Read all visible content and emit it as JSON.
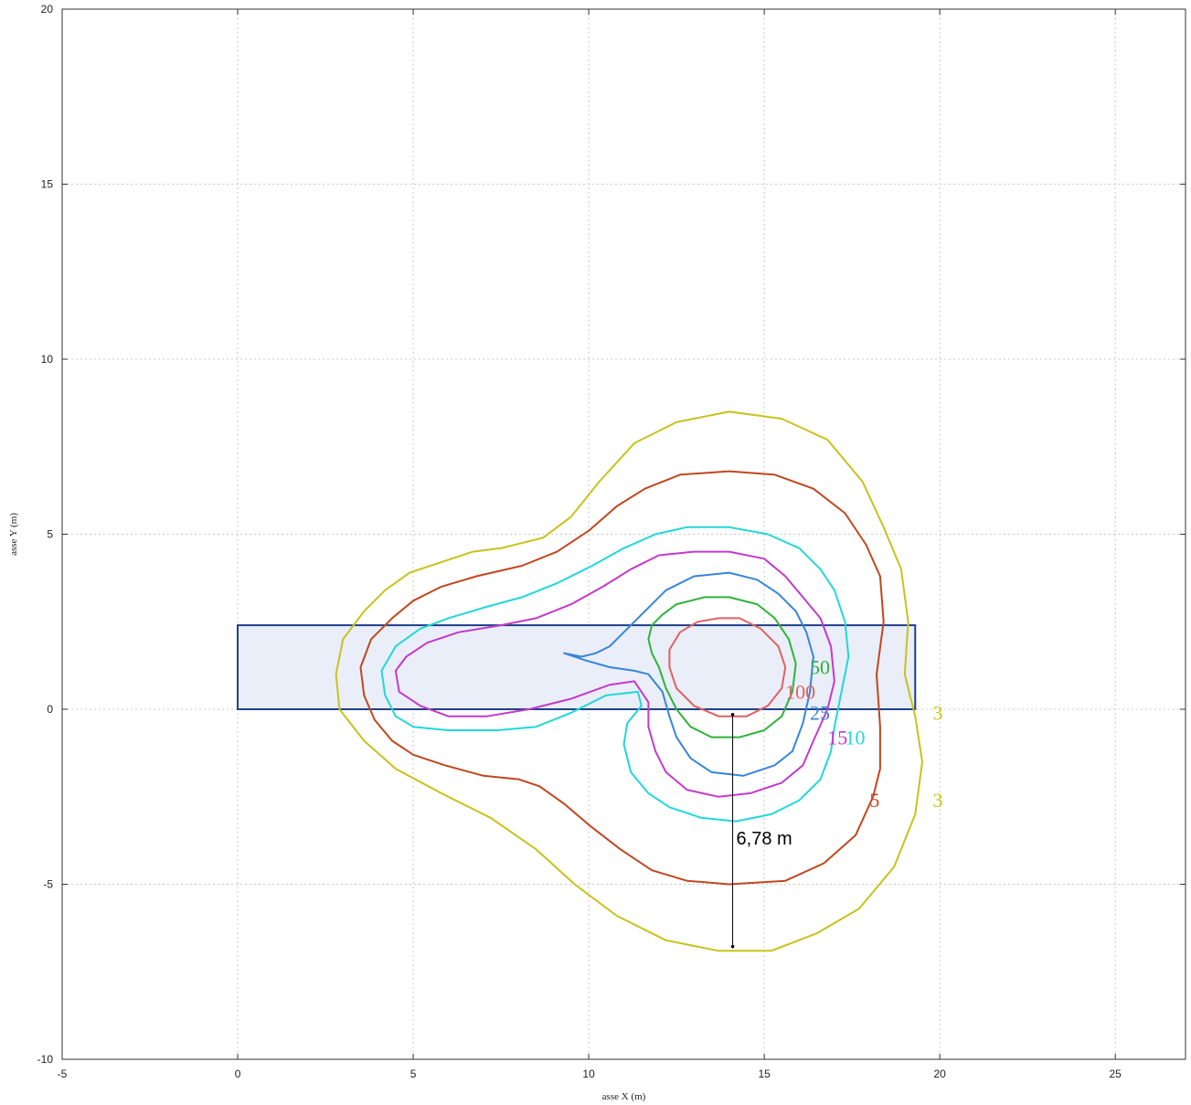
{
  "chart_data": {
    "type": "contour",
    "xlabel": "asse X (m)",
    "ylabel": "asse Y (m)",
    "xlim": [
      -5,
      27
    ],
    "ylim": [
      -10,
      20
    ],
    "xticks": [
      -5,
      0,
      5,
      10,
      15,
      20,
      25
    ],
    "yticks": [
      -10,
      -5,
      0,
      5,
      10,
      15,
      20
    ],
    "grid": true,
    "rectangle": {
      "x0": 0,
      "y0": 0,
      "x1": 19.3,
      "y1": 2.4,
      "fill": "#eaeef8",
      "stroke": "#1f3f8a"
    },
    "contours": [
      {
        "level": "3",
        "color": "#c9c21a",
        "closed": true,
        "points": [
          [
            7.5,
            4.6
          ],
          [
            8.7,
            4.9
          ],
          [
            9.5,
            5.5
          ],
          [
            10.3,
            6.5
          ],
          [
            11.3,
            7.6
          ],
          [
            12.5,
            8.2
          ],
          [
            14,
            8.5
          ],
          [
            15.5,
            8.3
          ],
          [
            16.8,
            7.7
          ],
          [
            17.8,
            6.5
          ],
          [
            18.4,
            5.2
          ],
          [
            18.9,
            4.0
          ],
          [
            19.1,
            2.5
          ],
          [
            19.0,
            1.0
          ],
          [
            19.3,
            -0.2
          ],
          [
            19.5,
            -1.5
          ],
          [
            19.3,
            -3.0
          ],
          [
            18.7,
            -4.5
          ],
          [
            17.7,
            -5.7
          ],
          [
            16.5,
            -6.4
          ],
          [
            15.2,
            -6.9
          ],
          [
            13.7,
            -6.9
          ],
          [
            12.2,
            -6.6
          ],
          [
            10.8,
            -5.9
          ],
          [
            9.6,
            -5.0
          ],
          [
            8.5,
            -4.0
          ],
          [
            7.2,
            -3.1
          ],
          [
            5.8,
            -2.4
          ],
          [
            4.5,
            -1.7
          ],
          [
            3.6,
            -0.9
          ],
          [
            2.9,
            0.0
          ],
          [
            2.8,
            1.0
          ],
          [
            3.0,
            2.0
          ],
          [
            3.6,
            2.8
          ],
          [
            4.2,
            3.4
          ],
          [
            4.9,
            3.9
          ],
          [
            5.8,
            4.2
          ],
          [
            6.7,
            4.5
          ]
        ]
      },
      {
        "level": "5",
        "color": "#c2461e",
        "closed": true,
        "points": [
          [
            6.8,
            3.8
          ],
          [
            8.1,
            4.1
          ],
          [
            9.1,
            4.5
          ],
          [
            10.0,
            5.1
          ],
          [
            10.8,
            5.8
          ],
          [
            11.6,
            6.3
          ],
          [
            12.6,
            6.7
          ],
          [
            14.0,
            6.8
          ],
          [
            15.3,
            6.7
          ],
          [
            16.4,
            6.3
          ],
          [
            17.3,
            5.6
          ],
          [
            17.9,
            4.7
          ],
          [
            18.3,
            3.8
          ],
          [
            18.4,
            2.5
          ],
          [
            18.2,
            1.0
          ],
          [
            18.3,
            -0.5
          ],
          [
            18.3,
            -1.7
          ],
          [
            18.1,
            -2.5
          ],
          [
            17.6,
            -3.6
          ],
          [
            16.7,
            -4.4
          ],
          [
            15.6,
            -4.9
          ],
          [
            14.0,
            -5.0
          ],
          [
            12.8,
            -4.9
          ],
          [
            11.8,
            -4.6
          ],
          [
            10.9,
            -4.0
          ],
          [
            10.0,
            -3.3
          ],
          [
            9.3,
            -2.7
          ],
          [
            8.6,
            -2.2
          ],
          [
            8.0,
            -2.0
          ],
          [
            7.0,
            -1.9
          ],
          [
            5.9,
            -1.6
          ],
          [
            5.0,
            -1.3
          ],
          [
            4.4,
            -0.9
          ],
          [
            3.9,
            -0.3
          ],
          [
            3.6,
            0.4
          ],
          [
            3.5,
            1.2
          ],
          [
            3.8,
            2.0
          ],
          [
            4.4,
            2.6
          ],
          [
            5.0,
            3.1
          ],
          [
            5.8,
            3.5
          ]
        ]
      },
      {
        "level": "10",
        "color": "#20d8d8",
        "closed": true,
        "points": [
          [
            7.0,
            2.9
          ],
          [
            8.1,
            3.2
          ],
          [
            9.1,
            3.6
          ],
          [
            10.1,
            4.1
          ],
          [
            11.0,
            4.6
          ],
          [
            11.9,
            5.0
          ],
          [
            12.8,
            5.2
          ],
          [
            14.0,
            5.2
          ],
          [
            15.1,
            5.0
          ],
          [
            16.0,
            4.6
          ],
          [
            16.6,
            4.0
          ],
          [
            17.0,
            3.4
          ],
          [
            17.3,
            2.5
          ],
          [
            17.4,
            1.5
          ],
          [
            17.2,
            0.5
          ],
          [
            17.0,
            -0.5
          ],
          [
            16.9,
            -1.2
          ],
          [
            16.6,
            -2.0
          ],
          [
            16.0,
            -2.6
          ],
          [
            15.2,
            -3.0
          ],
          [
            14.2,
            -3.2
          ],
          [
            13.2,
            -3.1
          ],
          [
            12.3,
            -2.8
          ],
          [
            11.7,
            -2.4
          ],
          [
            11.2,
            -1.8
          ],
          [
            11.0,
            -1.0
          ],
          [
            11.1,
            -0.4
          ],
          [
            11.5,
            0.1
          ],
          [
            11.4,
            0.5
          ],
          [
            10.5,
            0.4
          ],
          [
            9.5,
            -0.1
          ],
          [
            8.5,
            -0.5
          ],
          [
            7.4,
            -0.6
          ],
          [
            6.0,
            -0.6
          ],
          [
            5.0,
            -0.5
          ],
          [
            4.5,
            -0.2
          ],
          [
            4.2,
            0.4
          ],
          [
            4.1,
            1.1
          ],
          [
            4.5,
            1.8
          ],
          [
            5.2,
            2.3
          ],
          [
            6.0,
            2.6
          ]
        ]
      },
      {
        "level": "15",
        "color": "#c33acb",
        "closed": true,
        "points": [
          [
            6.3,
            2.2
          ],
          [
            7.5,
            2.4
          ],
          [
            8.5,
            2.6
          ],
          [
            9.5,
            3.0
          ],
          [
            10.4,
            3.5
          ],
          [
            11.2,
            4.0
          ],
          [
            12.0,
            4.4
          ],
          [
            13.0,
            4.5
          ],
          [
            14.0,
            4.5
          ],
          [
            15.0,
            4.3
          ],
          [
            15.6,
            3.8
          ],
          [
            16.1,
            3.2
          ],
          [
            16.6,
            2.6
          ],
          [
            16.9,
            1.8
          ],
          [
            17.0,
            0.8
          ],
          [
            16.8,
            0.0
          ],
          [
            16.4,
            -0.9
          ],
          [
            16.1,
            -1.6
          ],
          [
            15.5,
            -2.1
          ],
          [
            14.6,
            -2.4
          ],
          [
            13.7,
            -2.5
          ],
          [
            12.8,
            -2.3
          ],
          [
            12.2,
            -1.8
          ],
          [
            11.9,
            -1.2
          ],
          [
            11.7,
            -0.5
          ],
          [
            11.7,
            0.2
          ],
          [
            11.3,
            0.8
          ],
          [
            10.6,
            0.7
          ],
          [
            9.5,
            0.3
          ],
          [
            8.3,
            0.0
          ],
          [
            7.1,
            -0.2
          ],
          [
            6.0,
            -0.2
          ],
          [
            5.2,
            0.1
          ],
          [
            4.6,
            0.5
          ],
          [
            4.5,
            1.1
          ],
          [
            4.8,
            1.5
          ],
          [
            5.4,
            1.9
          ]
        ]
      },
      {
        "level": "25",
        "color": "#3785d8",
        "closed": true,
        "points": [
          [
            9.3,
            1.6
          ],
          [
            9.8,
            1.5
          ],
          [
            10.2,
            1.6
          ],
          [
            10.6,
            1.8
          ],
          [
            11.1,
            2.3
          ],
          [
            11.6,
            2.8
          ],
          [
            12.2,
            3.4
          ],
          [
            13.0,
            3.8
          ],
          [
            14.0,
            3.9
          ],
          [
            14.8,
            3.7
          ],
          [
            15.4,
            3.3
          ],
          [
            15.9,
            2.8
          ],
          [
            16.2,
            2.2
          ],
          [
            16.4,
            1.5
          ],
          [
            16.3,
            0.5
          ],
          [
            16.1,
            -0.4
          ],
          [
            15.8,
            -1.2
          ],
          [
            15.3,
            -1.6
          ],
          [
            14.4,
            -1.9
          ],
          [
            13.5,
            -1.8
          ],
          [
            12.9,
            -1.4
          ],
          [
            12.5,
            -0.8
          ],
          [
            12.3,
            -0.2
          ],
          [
            12.1,
            0.5
          ],
          [
            11.7,
            1.0
          ],
          [
            11.3,
            1.1
          ],
          [
            10.6,
            1.2
          ],
          [
            9.9,
            1.4
          ]
        ]
      },
      {
        "level": "50",
        "color": "#2fb33a",
        "closed": true,
        "points": [
          [
            12.5,
            3.0
          ],
          [
            13.3,
            3.2
          ],
          [
            14.0,
            3.2
          ],
          [
            14.8,
            3.0
          ],
          [
            15.3,
            2.6
          ],
          [
            15.7,
            2.0
          ],
          [
            15.9,
            1.3
          ],
          [
            15.8,
            0.5
          ],
          [
            15.5,
            -0.2
          ],
          [
            15.0,
            -0.6
          ],
          [
            14.3,
            -0.8
          ],
          [
            13.5,
            -0.8
          ],
          [
            12.9,
            -0.5
          ],
          [
            12.5,
            0.0
          ],
          [
            12.2,
            0.6
          ],
          [
            12.0,
            1.2
          ],
          [
            11.8,
            1.6
          ],
          [
            11.7,
            2.0
          ],
          [
            11.8,
            2.4
          ],
          [
            12.1,
            2.7
          ]
        ]
      },
      {
        "level": "100",
        "color": "#e06262",
        "closed": true,
        "points": [
          [
            13.1,
            2.5
          ],
          [
            13.7,
            2.6
          ],
          [
            14.3,
            2.6
          ],
          [
            14.9,
            2.3
          ],
          [
            15.4,
            1.8
          ],
          [
            15.6,
            1.2
          ],
          [
            15.5,
            0.6
          ],
          [
            15.1,
            0.1
          ],
          [
            14.5,
            -0.2
          ],
          [
            13.7,
            -0.2
          ],
          [
            13.0,
            0.1
          ],
          [
            12.5,
            0.6
          ],
          [
            12.3,
            1.2
          ],
          [
            12.3,
            1.7
          ],
          [
            12.6,
            2.2
          ]
        ]
      }
    ],
    "contour_labels": [
      {
        "text": "50",
        "x": 16.3,
        "y": 1.0,
        "color": "#2fb33a"
      },
      {
        "text": "100",
        "x": 15.6,
        "y": 0.3,
        "color": "#e06262"
      },
      {
        "text": "25",
        "x": 16.3,
        "y": -0.3,
        "color": "#3785d8"
      },
      {
        "text": "15",
        "x": 16.8,
        "y": -1.0,
        "color": "#c33acb"
      },
      {
        "text": "10",
        "x": 17.3,
        "y": -1.0,
        "color": "#20d8d8"
      },
      {
        "text": "3",
        "x": 19.8,
        "y": -0.3,
        "color": "#c9c21a"
      },
      {
        "text": "5",
        "x": 18.0,
        "y": -2.8,
        "color": "#c2461e"
      },
      {
        "text": "3",
        "x": 19.8,
        "y": -2.8,
        "color": "#c9c21a"
      }
    ],
    "distance_marker": {
      "x": 14.1,
      "y_from": -0.15,
      "y_to": -6.78,
      "label": "6,78 m"
    }
  }
}
